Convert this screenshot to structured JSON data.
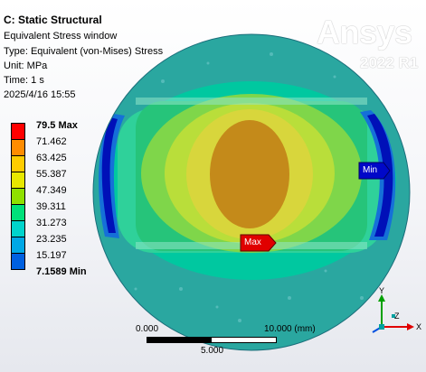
{
  "header": {
    "title": "C: Static Structural",
    "result_name": "Equivalent Stress window",
    "type": "Type: Equivalent (von-Mises) Stress",
    "unit": "Unit: MPa",
    "time": "Time: 1 s",
    "date": "2025/4/16 15:55"
  },
  "logo": {
    "name": "Ansys",
    "version": "2022 R1"
  },
  "legend": [
    {
      "value": "79.5 Max",
      "color": "#ff0000"
    },
    {
      "value": "71.462",
      "color": "#ff8c00"
    },
    {
      "value": "63.425",
      "color": "#ffcc00"
    },
    {
      "value": "55.387",
      "color": "#e8e800"
    },
    {
      "value": "47.349",
      "color": "#8fe000"
    },
    {
      "value": "39.311",
      "color": "#00e07a"
    },
    {
      "value": "31.273",
      "color": "#00d4cc"
    },
    {
      "value": "23.235",
      "color": "#00a8e6"
    },
    {
      "value": "15.197",
      "color": "#0060e0"
    },
    {
      "value": "7.1589 Min",
      "color": "#0000c8"
    }
  ],
  "probes": {
    "max_label": "Max",
    "min_label": "Min"
  },
  "scale_bar": {
    "left_label": "0.000",
    "right_label": "10.000 (mm)",
    "mid_label": "5.000"
  },
  "triad": {
    "x_label": "X",
    "y_label": "Y",
    "z_label": "Z"
  }
}
